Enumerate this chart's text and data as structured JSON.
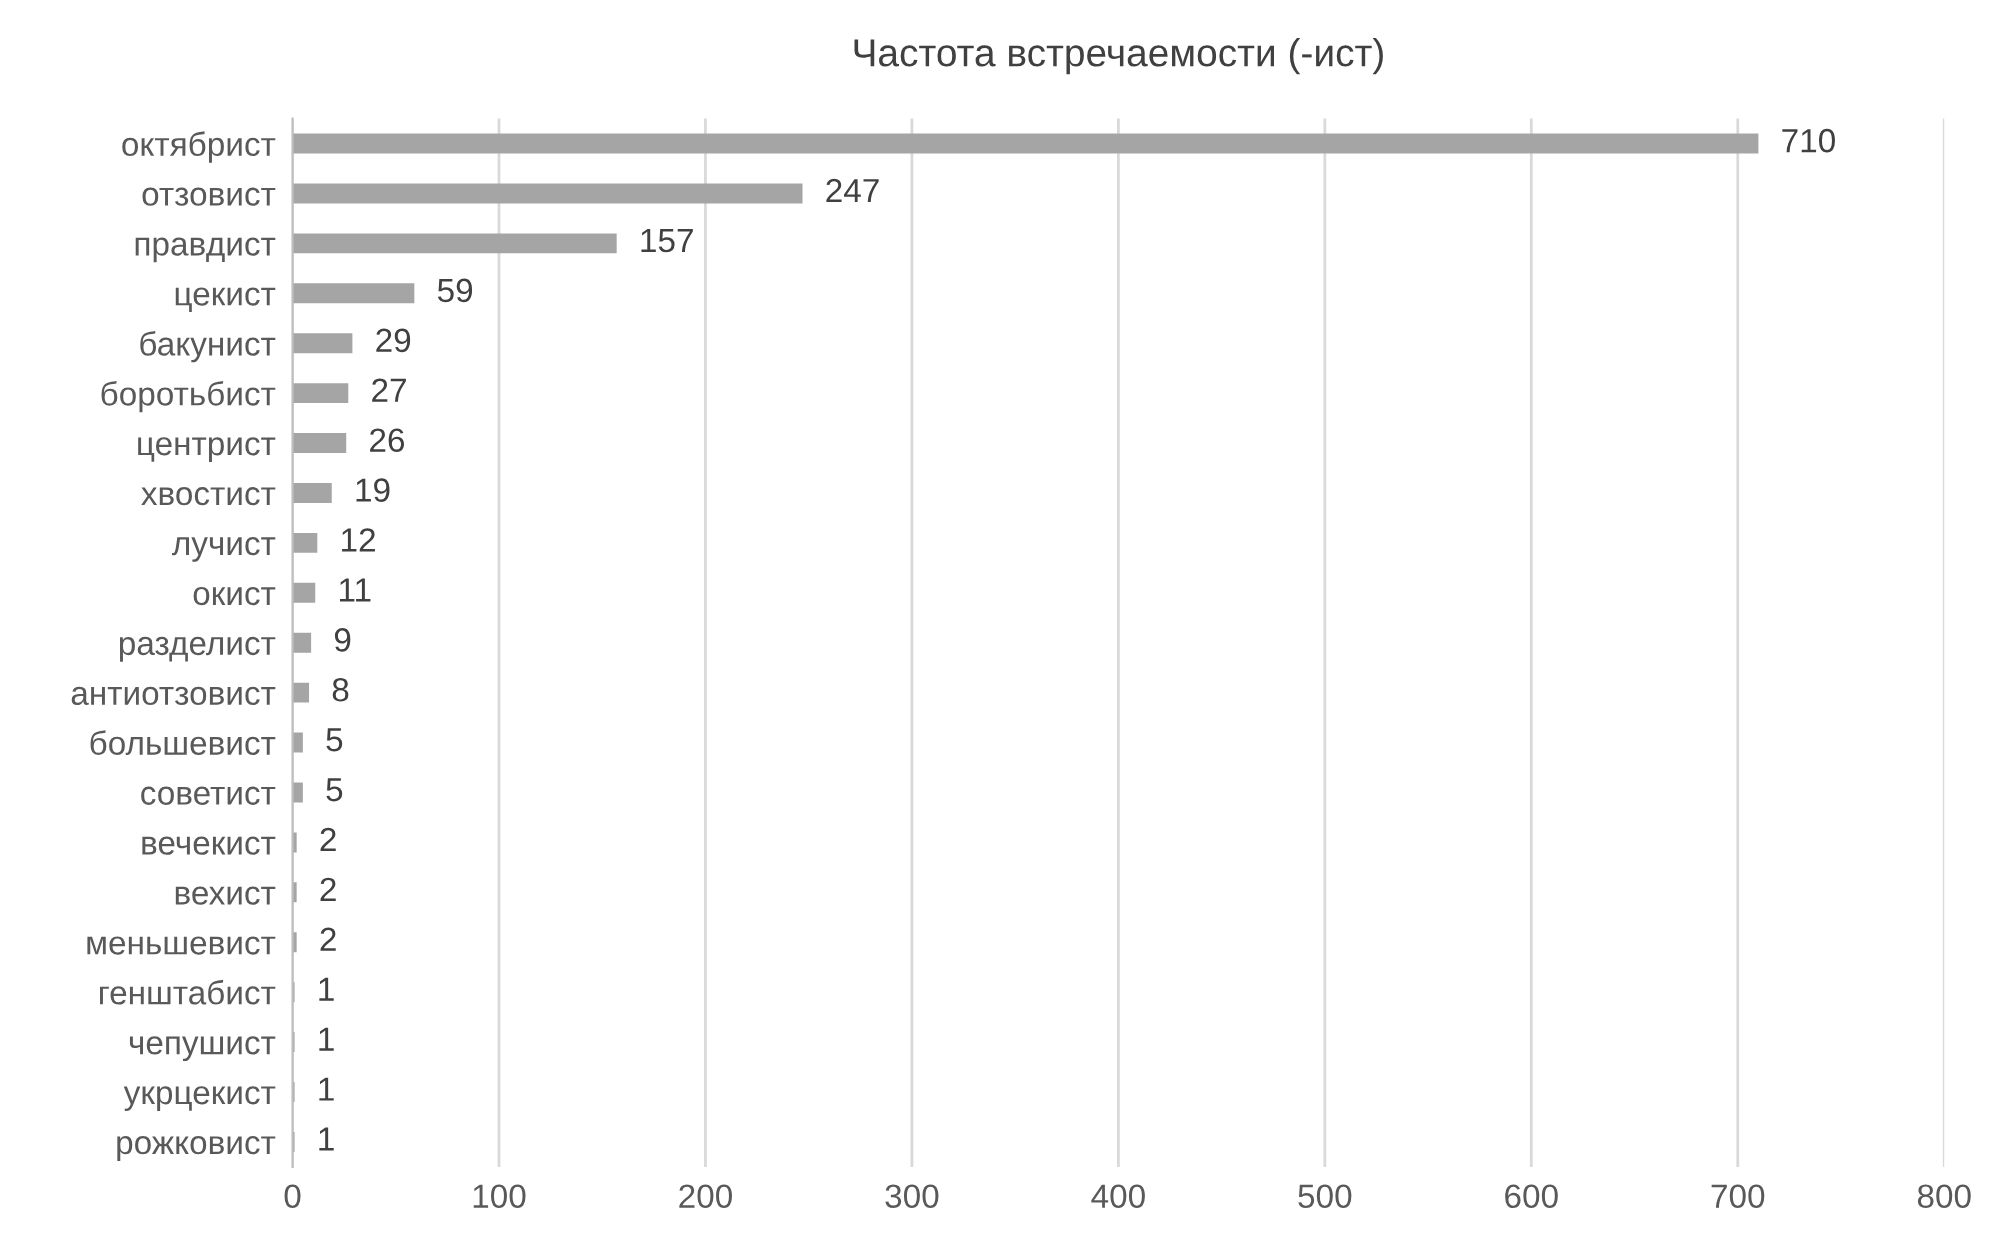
{
  "chart_data": {
    "type": "bar",
    "orientation": "horizontal",
    "title": "Частота встречаемости (-ист)",
    "categories": [
      "октябрист",
      "отзовист",
      "правдист",
      "цекист",
      "бакунист",
      "боротьбист",
      "центрист",
      "хвостист",
      "лучист",
      "окист",
      "разделист",
      "антиотзовист",
      "большевист",
      "советист",
      "вечекист",
      "вехист",
      "меньшевист",
      "генштабист",
      "чепушист",
      "укрцекист",
      "рожковист"
    ],
    "values": [
      710,
      247,
      157,
      59,
      29,
      27,
      26,
      19,
      12,
      11,
      9,
      8,
      5,
      5,
      2,
      2,
      2,
      1,
      1,
      1,
      1
    ],
    "color": "#a5a5a5",
    "xlim": [
      0,
      800
    ],
    "xticks": [
      0,
      100,
      200,
      300,
      400,
      500,
      600,
      700,
      800
    ],
    "grid": "x",
    "data_labels": true,
    "legend": false
  }
}
